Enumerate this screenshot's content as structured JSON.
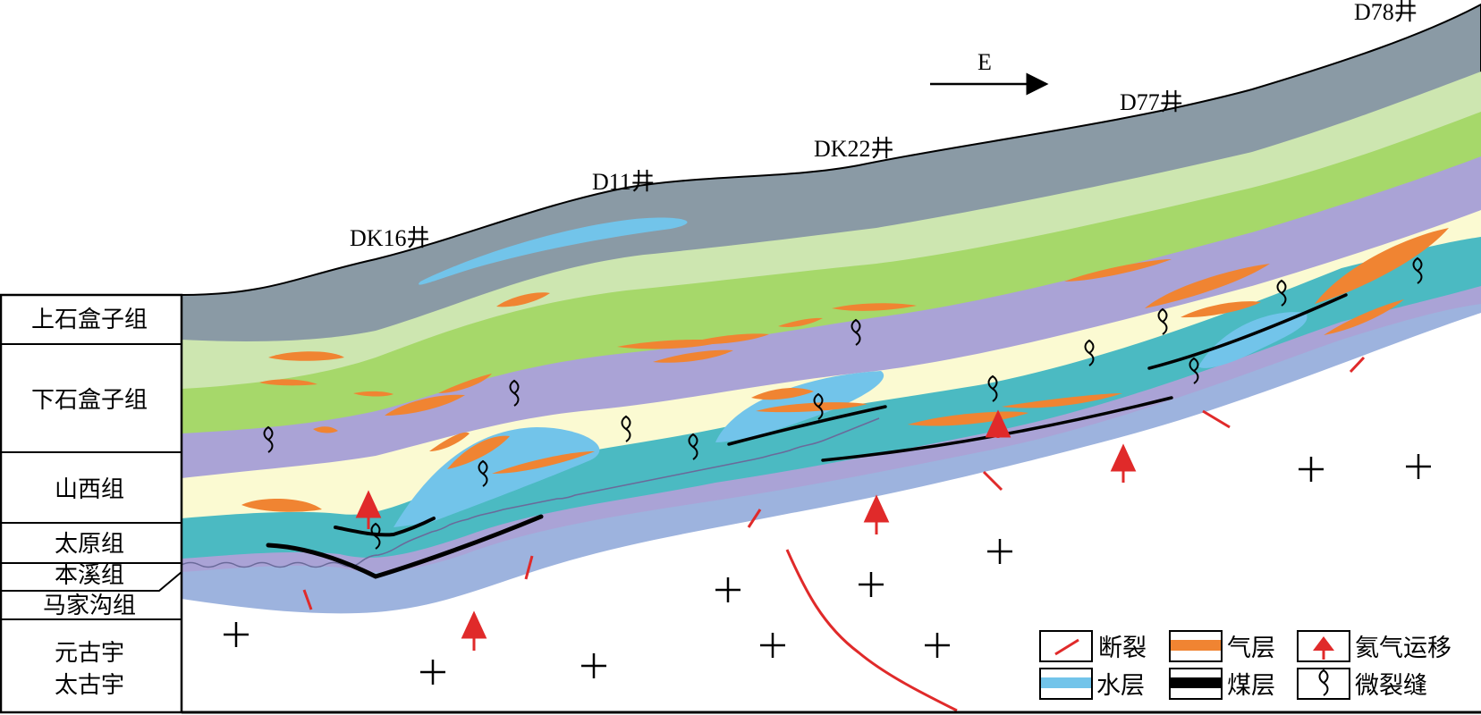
{
  "direction_label": "E",
  "wells": [
    {
      "label": "DK16井"
    },
    {
      "label": "D11井"
    },
    {
      "label": "DK22井"
    },
    {
      "label": "D77井"
    },
    {
      "label": "D78井"
    }
  ],
  "stratigraphy": [
    {
      "label": "上石盒子组"
    },
    {
      "label": "下石盒子组"
    },
    {
      "label": "山西组"
    },
    {
      "label": "太原组"
    },
    {
      "label": "本溪组"
    },
    {
      "label": "马家沟组"
    },
    {
      "label_line1": "元古宇",
      "label_line2": "太古宇"
    }
  ],
  "legend": {
    "fault": "断裂",
    "gas_layer": "气层",
    "helium_migration": "氦气运移",
    "water_layer": "水层",
    "coal_layer": "煤层",
    "microfracture": "微裂缝"
  },
  "colors": {
    "upper_gray": "#8a9aa5",
    "light_green": "#cde6b0",
    "green": "#a6d86a",
    "purple": "#aaa3d6",
    "cream": "#fbfad2",
    "teal": "#4bbac2",
    "blue_base": "#9db3de",
    "gas": "#f08432",
    "water": "#72c4ea",
    "fault": "#e02a2a",
    "coal": "#000000"
  }
}
